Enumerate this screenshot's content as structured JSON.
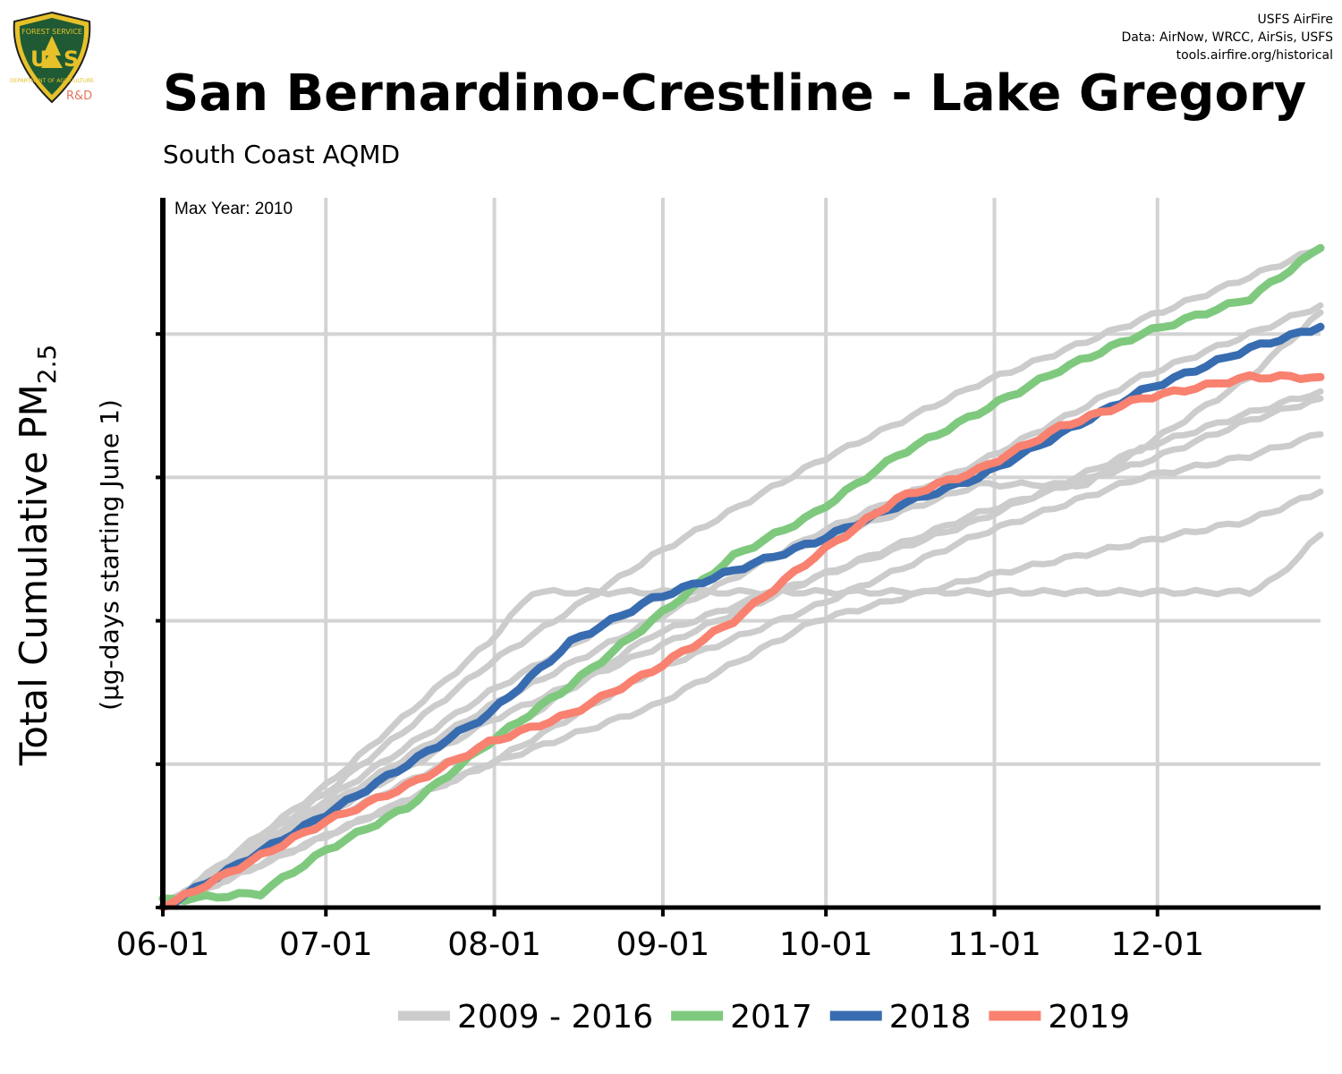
{
  "header": {
    "logo_label": "USFS",
    "logo_suffix": "R&D",
    "credits": [
      "USFS AirFire",
      "Data: AirNow, WRCC, AirSis, USFS",
      "tools.airfire.org/historical"
    ],
    "title": "San Bernardino-Crestline - Lake Gregory",
    "subtitle": "South Coast AQMD"
  },
  "chart_data": {
    "type": "line",
    "annotation": "Max Year: 2010",
    "ylabel": "Total Cumulative PM",
    "ylabel_subscript": "2.5",
    "ylabel_sub2": "(µg-days starting June 1)",
    "x_ticks": [
      "06-01",
      "07-01",
      "08-01",
      "09-01",
      "10-01",
      "11-01",
      "12-01"
    ],
    "x_range_days": [
      0,
      213
    ],
    "y_tick_count": 5,
    "grid": true,
    "legend_position": "bottom",
    "colors": {
      "history": "#cccccc",
      "2017": "#7fc97f",
      "2018": "#386cb0",
      "2019": "#f98170"
    },
    "series": [
      {
        "name": "2009 - 2016",
        "color": "#cccccc",
        "role": "history",
        "points": [
          [
            0,
            0
          ],
          [
            30,
            0.85
          ],
          [
            60,
            1.85
          ],
          [
            68,
            2.2
          ],
          [
            92,
            2.2
          ],
          [
            200,
            2.2
          ],
          [
            205,
            2.3
          ],
          [
            213,
            2.6
          ]
        ]
      },
      {
        "name": "2009 - 2016",
        "color": "#cccccc",
        "role": "history",
        "points": [
          [
            0,
            0
          ],
          [
            30,
            0.8
          ],
          [
            60,
            1.7
          ],
          [
            90,
            2.45
          ],
          [
            120,
            3.1
          ],
          [
            150,
            3.65
          ],
          [
            180,
            4.1
          ],
          [
            200,
            4.4
          ],
          [
            213,
            4.6
          ]
        ]
      },
      {
        "name": "2009 - 2016",
        "color": "#cccccc",
        "role": "history",
        "points": [
          [
            0,
            0
          ],
          [
            30,
            0.7
          ],
          [
            60,
            1.4
          ],
          [
            90,
            2.0
          ],
          [
            120,
            2.6
          ],
          [
            150,
            3.1
          ],
          [
            180,
            3.7
          ],
          [
            200,
            4.0
          ],
          [
            213,
            4.2
          ]
        ]
      },
      {
        "name": "2009 - 2016",
        "color": "#cccccc",
        "role": "history",
        "points": [
          [
            0,
            0
          ],
          [
            30,
            0.6
          ],
          [
            60,
            1.15
          ],
          [
            90,
            1.9
          ],
          [
            120,
            2.3
          ],
          [
            150,
            2.75
          ],
          [
            180,
            3.1
          ],
          [
            200,
            3.4
          ],
          [
            213,
            3.55
          ]
        ]
      },
      {
        "name": "2009 - 2016",
        "color": "#cccccc",
        "role": "history",
        "points": [
          [
            0,
            0
          ],
          [
            30,
            0.5
          ],
          [
            60,
            1.0
          ],
          [
            90,
            1.65
          ],
          [
            120,
            2.1
          ],
          [
            150,
            2.6
          ],
          [
            180,
            3.0
          ],
          [
            200,
            3.15
          ],
          [
            213,
            3.3
          ]
        ]
      },
      {
        "name": "2009 - 2016",
        "color": "#cccccc",
        "role": "history",
        "points": [
          [
            0,
            0
          ],
          [
            30,
            0.5
          ],
          [
            60,
            1.0
          ],
          [
            90,
            1.4
          ],
          [
            120,
            2.0
          ],
          [
            150,
            2.3
          ],
          [
            180,
            2.55
          ],
          [
            200,
            2.7
          ],
          [
            213,
            2.9
          ]
        ]
      },
      {
        "name": "2009 - 2016",
        "color": "#cccccc",
        "role": "history",
        "points": [
          [
            0,
            0
          ],
          [
            30,
            0.75
          ],
          [
            60,
            1.5
          ],
          [
            90,
            2.15
          ],
          [
            120,
            2.55
          ],
          [
            150,
            2.95
          ],
          [
            170,
            2.95
          ],
          [
            180,
            3.2
          ],
          [
            200,
            3.45
          ],
          [
            213,
            3.6
          ]
        ]
      },
      {
        "name": "2009 - 2016",
        "color": "#cccccc",
        "role": "history",
        "points": [
          [
            0,
            0
          ],
          [
            30,
            0.65
          ],
          [
            60,
            1.3
          ],
          [
            90,
            1.8
          ],
          [
            120,
            2.3
          ],
          [
            150,
            2.7
          ],
          [
            180,
            3.2
          ],
          [
            200,
            3.7
          ],
          [
            213,
            4.15
          ]
        ]
      },
      {
        "name": "2017",
        "color": "#7fc97f",
        "role": "highlight",
        "points": [
          [
            0,
            0.05
          ],
          [
            18,
            0.1
          ],
          [
            30,
            0.4
          ],
          [
            45,
            0.7
          ],
          [
            60,
            1.15
          ],
          [
            75,
            1.55
          ],
          [
            90,
            2.0
          ],
          [
            105,
            2.45
          ],
          [
            120,
            2.75
          ],
          [
            135,
            3.15
          ],
          [
            150,
            3.45
          ],
          [
            165,
            3.75
          ],
          [
            180,
            4.0
          ],
          [
            200,
            4.25
          ],
          [
            213,
            4.6
          ]
        ]
      },
      {
        "name": "2018",
        "color": "#386cb0",
        "role": "highlight",
        "points": [
          [
            0,
            0
          ],
          [
            30,
            0.65
          ],
          [
            45,
            1.0
          ],
          [
            60,
            1.35
          ],
          [
            75,
            1.85
          ],
          [
            90,
            2.15
          ],
          [
            105,
            2.35
          ],
          [
            120,
            2.55
          ],
          [
            135,
            2.8
          ],
          [
            150,
            3.0
          ],
          [
            165,
            3.3
          ],
          [
            180,
            3.6
          ],
          [
            200,
            3.9
          ],
          [
            213,
            4.05
          ]
        ]
      },
      {
        "name": "2019",
        "color": "#f98170",
        "role": "highlight",
        "points": [
          [
            0,
            0
          ],
          [
            30,
            0.6
          ],
          [
            45,
            0.85
          ],
          [
            60,
            1.15
          ],
          [
            75,
            1.35
          ],
          [
            90,
            1.65
          ],
          [
            105,
            2.0
          ],
          [
            120,
            2.45
          ],
          [
            135,
            2.85
          ],
          [
            150,
            3.05
          ],
          [
            165,
            3.35
          ],
          [
            180,
            3.55
          ],
          [
            200,
            3.7
          ],
          [
            213,
            3.7
          ]
        ]
      }
    ],
    "legend": [
      {
        "label": "2009 - 2016",
        "color": "#cccccc"
      },
      {
        "label": "2017",
        "color": "#7fc97f"
      },
      {
        "label": "2018",
        "color": "#386cb0"
      },
      {
        "label": "2019",
        "color": "#f98170"
      }
    ]
  }
}
